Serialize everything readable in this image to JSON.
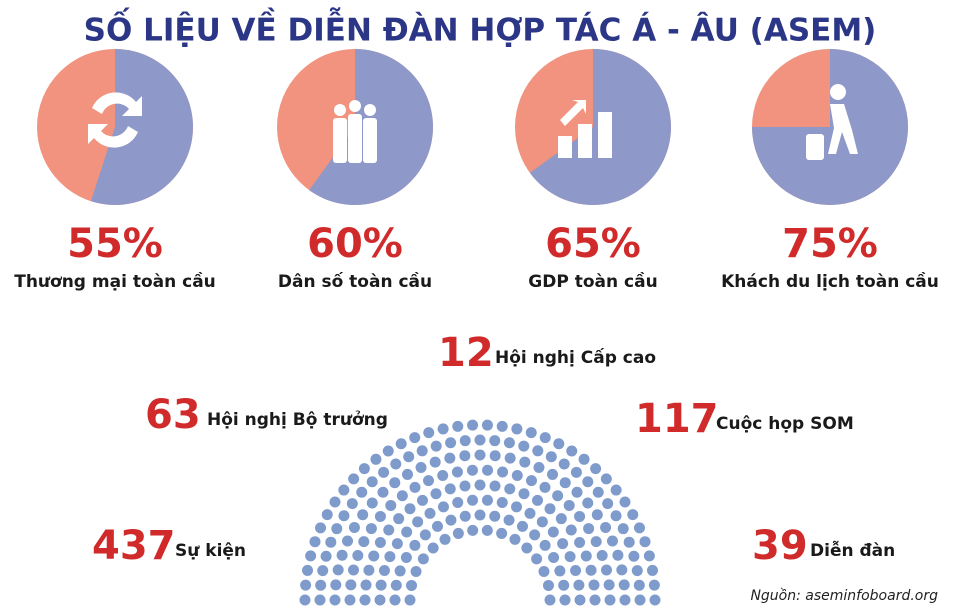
{
  "title": "SỐ LIỆU VỀ DIỄN ĐÀN HỢP TÁC Á - ÂU (ASEM)",
  "pies": {
    "values": [
      55,
      60,
      65,
      75
    ],
    "value_labels": [
      "55%",
      "60%",
      "65%",
      "75%"
    ],
    "labels": [
      "Thương mại toàn cầu",
      "Dân số toàn cầu",
      "GDP toàn cầu",
      "Khách du lịch toàn cầu"
    ],
    "color": "#8e98c9",
    "rest_color": "#f1937f"
  },
  "stats": [
    {
      "value": 12,
      "label": "Hội nghị Cấp cao"
    },
    {
      "value": 63,
      "label": "Hội nghị Bộ trưởng"
    },
    {
      "value": 117,
      "label": "Cuộc họp SOM"
    },
    {
      "value": 437,
      "label": "Sự kiện"
    },
    {
      "value": 39,
      "label": "Diễn đàn"
    }
  ],
  "source": "Nguồn: aseminfoboard.org"
}
